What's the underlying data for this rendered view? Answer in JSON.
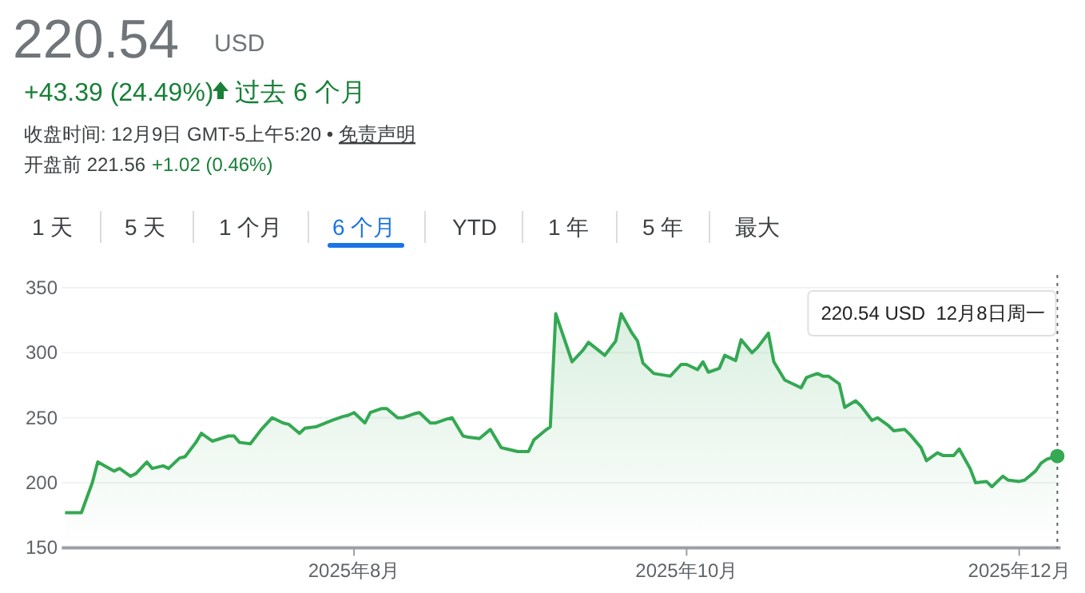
{
  "chart_data": {
    "type": "area",
    "title": "220.54",
    "annotations": [
      "USD",
      "+43.39 (24.49%)",
      "过去 6 个月",
      "收盘时间: 12月9日 GMT-5上午5:20 •",
      "免责声明",
      "开盘前 221.56",
      "+1.02 (0.46%)",
      "1 天",
      "5 天",
      "1 个月",
      "6 个月",
      "YTD",
      "1 年",
      "5 年",
      "最大"
    ],
    "x": [
      "2025-06-09",
      "2025-06-12",
      "2025-06-14",
      "2025-06-15",
      "2025-06-18",
      "2025-06-19",
      "2025-06-21",
      "2025-06-22",
      "2025-06-24",
      "2025-06-25",
      "2025-06-27",
      "2025-06-28",
      "2025-06-30",
      "2025-07-01",
      "2025-07-03",
      "2025-07-04",
      "2025-07-06",
      "2025-07-09",
      "2025-07-10",
      "2025-07-11",
      "2025-07-13",
      "2025-07-15",
      "2025-07-17",
      "2025-07-19",
      "2025-07-20",
      "2025-07-22",
      "2025-07-23",
      "2025-07-25",
      "2025-07-28",
      "2025-07-30",
      "2025-07-31",
      "2025-08-01",
      "2025-08-03",
      "2025-08-04",
      "2025-08-06",
      "2025-08-07",
      "2025-08-09",
      "2025-08-10",
      "2025-08-12",
      "2025-08-13",
      "2025-08-15",
      "2025-08-16",
      "2025-08-18",
      "2025-08-19",
      "2025-08-21",
      "2025-08-22",
      "2025-08-24",
      "2025-08-26",
      "2025-08-28",
      "2025-08-29",
      "2025-08-31",
      "2025-09-02",
      "2025-09-03",
      "2025-09-05",
      "2025-09-06",
      "2025-09-07",
      "2025-09-10",
      "2025-09-12",
      "2025-09-13",
      "2025-09-16",
      "2025-09-18",
      "2025-09-19",
      "2025-09-21",
      "2025-09-22",
      "2025-09-23",
      "2025-09-25",
      "2025-09-28",
      "2025-09-30",
      "2025-10-01",
      "2025-10-03",
      "2025-10-04",
      "2025-10-05",
      "2025-10-07",
      "2025-10-08",
      "2025-10-10",
      "2025-10-11",
      "2025-10-13",
      "2025-10-14",
      "2025-10-16",
      "2025-10-17",
      "2025-10-19",
      "2025-10-22",
      "2025-10-23",
      "2025-10-25",
      "2025-10-26",
      "2025-10-27",
      "2025-10-29",
      "2025-10-30",
      "2025-11-01",
      "2025-11-02",
      "2025-11-04",
      "2025-11-05",
      "2025-11-07",
      "2025-11-08",
      "2025-11-10",
      "2025-11-11",
      "2025-11-13",
      "2025-11-14",
      "2025-11-16",
      "2025-11-17",
      "2025-11-19",
      "2025-11-20",
      "2025-11-22",
      "2025-11-23",
      "2025-11-25",
      "2025-11-26",
      "2025-11-28",
      "2025-11-29",
      "2025-12-01",
      "2025-12-02",
      "2025-12-04",
      "2025-12-05",
      "2025-12-06",
      "2025-12-08"
    ],
    "series": [
      {
        "color": "#34a853",
        "values": [
          177,
          177,
          200,
          216,
          209,
          211,
          205,
          207,
          216,
          211,
          213,
          211,
          219,
          220,
          231,
          238,
          232,
          236,
          236,
          231,
          230,
          241,
          250,
          246,
          245,
          238,
          242,
          243,
          248,
          251,
          252,
          254,
          246,
          254,
          257,
          257,
          250,
          250,
          253,
          254,
          246,
          246,
          249,
          250,
          236,
          235,
          234,
          241,
          227,
          226,
          224,
          224,
          233,
          240,
          243,
          330,
          293,
          302,
          308,
          298,
          309,
          330,
          315,
          309,
          292,
          284,
          282,
          291,
          291,
          287,
          293,
          285,
          288,
          298,
          294,
          310,
          300,
          304,
          315,
          293,
          279,
          273,
          281,
          284,
          282,
          282,
          276,
          258,
          263,
          259,
          248,
          250,
          244,
          240,
          241,
          237,
          227,
          217,
          223,
          221,
          221,
          226,
          211,
          200,
          201,
          197,
          205,
          202,
          201,
          202,
          209,
          215,
          218,
          220.54
        ]
      }
    ],
    "xlim": [
      "2025-06-09",
      "2025-12-08"
    ],
    "xticks": [
      {
        "value": "2025-08-01",
        "label": "2025年8月"
      },
      {
        "value": "2025-10-01",
        "label": "2025年10月"
      },
      {
        "value": "2025-12-01",
        "label": "2025年12月"
      }
    ],
    "ylim": [
      150,
      350
    ],
    "yticks": [
      150,
      200,
      250,
      300,
      350
    ],
    "grid": "y",
    "marker": "none",
    "line_style": "solid",
    "ref_lines": [
      {
        "axis": "x",
        "value": "2025-12-08",
        "label": "220.54 USD  12月8日周一",
        "line_style": "dotted"
      }
    ]
  }
}
